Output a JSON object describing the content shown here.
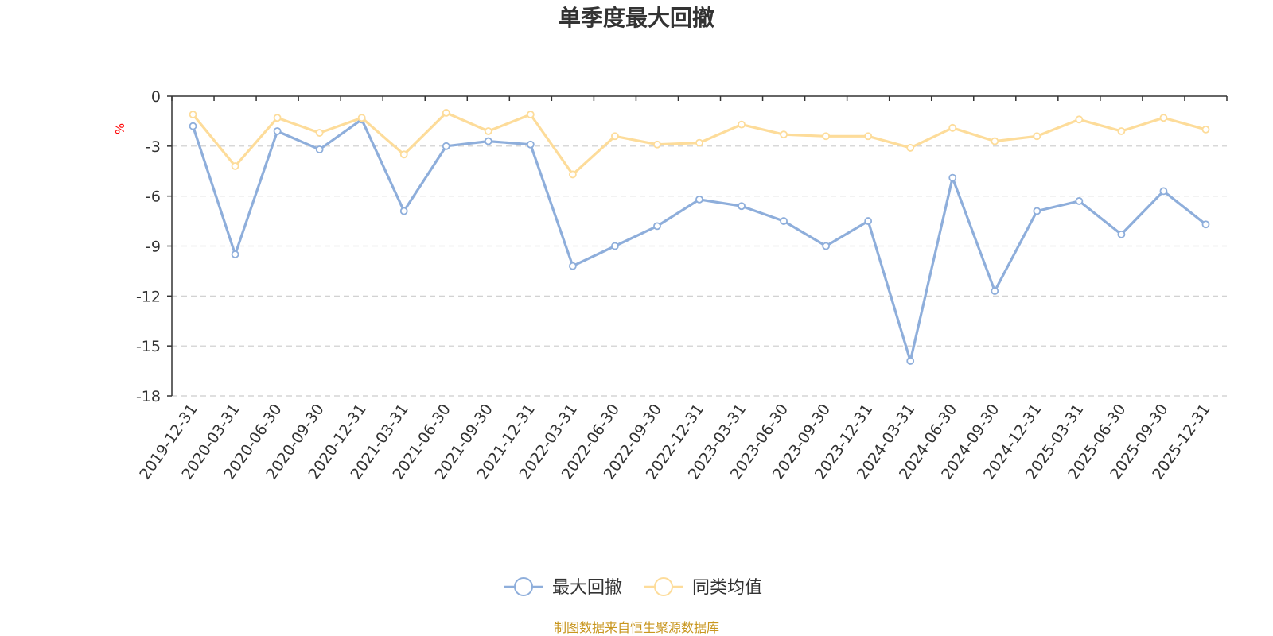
{
  "chart_data": {
    "type": "line",
    "title": "单季度最大回撤",
    "ylabel": "%",
    "ylim": [
      -18,
      0
    ],
    "yticks": [
      0,
      -3,
      -6,
      -9,
      -12,
      -15,
      -18
    ],
    "grid": true,
    "legend_position": "bottom-center",
    "x": [
      "2019-12-31",
      "2020-03-31",
      "2020-06-30",
      "2020-09-30",
      "2020-12-31",
      "2021-03-31",
      "2021-06-30",
      "2021-09-30",
      "2021-12-31",
      "2022-03-31",
      "2022-06-30",
      "2022-09-30",
      "2022-12-31",
      "2023-03-31",
      "2023-06-30",
      "2023-09-30",
      "2023-12-31",
      "2024-03-31",
      "2024-06-30",
      "2024-09-30",
      "2024-12-31",
      "2025-03-31",
      "2025-06-30",
      "2025-09-30",
      "2025-12-31"
    ],
    "series": [
      {
        "name": "最大回撤",
        "color": "#8eaedb",
        "values": [
          -1.8,
          -9.5,
          -2.1,
          -3.2,
          -1.4,
          -6.9,
          -3.0,
          -2.7,
          -2.9,
          -10.2,
          -9.0,
          -7.8,
          -6.2,
          -6.6,
          -7.5,
          -9.0,
          -7.5,
          -15.9,
          -4.9,
          -11.7,
          -6.9,
          -6.3,
          -8.3,
          -5.7,
          -7.7
        ]
      },
      {
        "name": "同类均值",
        "color": "#fddc9a",
        "values": [
          -1.1,
          -4.2,
          -1.3,
          -2.2,
          -1.3,
          -3.5,
          -1.0,
          -2.1,
          -1.1,
          -4.7,
          -2.4,
          -2.9,
          -2.8,
          -1.7,
          -2.3,
          -2.4,
          -2.4,
          -3.1,
          -1.9,
          -2.7,
          -2.4,
          -1.4,
          -2.1,
          -1.3,
          -2.0
        ]
      }
    ]
  },
  "colors": {
    "axis": "#333333",
    "grid": "#cccccc",
    "unit": "#ff0000",
    "source": "#c8961e"
  },
  "source_text": "制图数据来自恒生聚源数据库"
}
